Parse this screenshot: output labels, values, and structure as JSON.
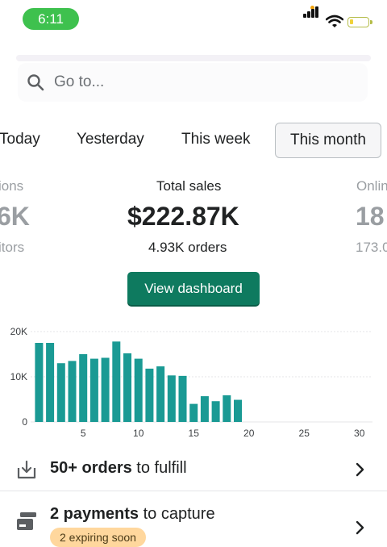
{
  "status": {
    "time": "6:11"
  },
  "search": {
    "placeholder": "Go to..."
  },
  "tabs": [
    "Today",
    "Yesterday",
    "This week",
    "This month"
  ],
  "active_tab": "This month",
  "metrics": {
    "left": {
      "label": "ions",
      "value": "6K",
      "sub": "itors"
    },
    "center": {
      "label": "Total sales",
      "value": "$222.87K",
      "sub": "4.93K orders"
    },
    "right": {
      "label": "Onlin",
      "value": "18",
      "sub": "173.0"
    }
  },
  "view_dashboard_label": "View dashboard",
  "chart_data": {
    "type": "bar",
    "x": [
      1,
      2,
      3,
      4,
      5,
      6,
      7,
      8,
      9,
      10,
      11,
      12,
      13,
      14,
      15,
      16,
      17,
      18,
      19
    ],
    "values": [
      17500,
      17500,
      13000,
      13500,
      15000,
      14000,
      14200,
      17800,
      15200,
      14000,
      11800,
      12300,
      10300,
      10200,
      4000,
      5700,
      4600,
      5900,
      4900
    ],
    "xticks": [
      5,
      10,
      15,
      20,
      25,
      30
    ],
    "yticks": [
      "0",
      "10K",
      "20K"
    ],
    "ylim": [
      0,
      20000
    ],
    "xlim": [
      0,
      31
    ],
    "bar_color": "#1a9a94",
    "grid": true
  },
  "tasks": [
    {
      "bold": "50+ orders",
      "rest": " to fulfill",
      "icon": "download-box-icon"
    },
    {
      "bold": "2 payments",
      "rest": " to capture",
      "icon": "credit-card-icon",
      "badge": "2 expiring soon"
    }
  ]
}
